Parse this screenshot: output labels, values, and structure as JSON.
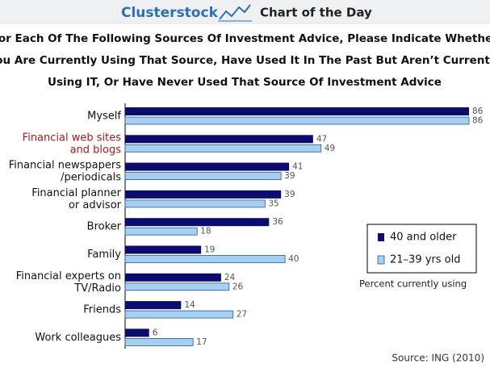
{
  "header": {
    "brand": "Clusterstock",
    "label": "Chart of the Day"
  },
  "chart_data": {
    "type": "bar",
    "orientation": "horizontal",
    "title": [
      "For Each Of The Following Sources Of Investment Advice, Please Indicate Whether",
      "You Are Currently Using That Source, Have Used It In The Past But Aren’t Currently",
      "Using IT, Or Have Never Used That Source Of Investment Advice"
    ],
    "categories": [
      [
        "Myself"
      ],
      [
        "Financial web sites",
        "and blogs"
      ],
      [
        "Financial newspapers",
        "/periodicals"
      ],
      [
        "Financial planner",
        "or advisor"
      ],
      [
        "Broker"
      ],
      [
        "Family"
      ],
      [
        "Financial experts on",
        "TV/Radio"
      ],
      [
        "Friends"
      ],
      [
        "Work colleagues"
      ]
    ],
    "highlight_category": 1,
    "highlight_color": "#a3191c",
    "series": [
      {
        "name": "40 and older",
        "color": "#0c0c6e",
        "values": [
          86,
          47,
          41,
          39,
          36,
          19,
          24,
          14,
          6
        ]
      },
      {
        "name": "21–39 yrs old",
        "color": "#a6cff2",
        "values": [
          86,
          49,
          39,
          35,
          18,
          40,
          26,
          27,
          17
        ]
      }
    ],
    "legend_note": "Percent currently using",
    "source": "Source: ING (2010)"
  }
}
